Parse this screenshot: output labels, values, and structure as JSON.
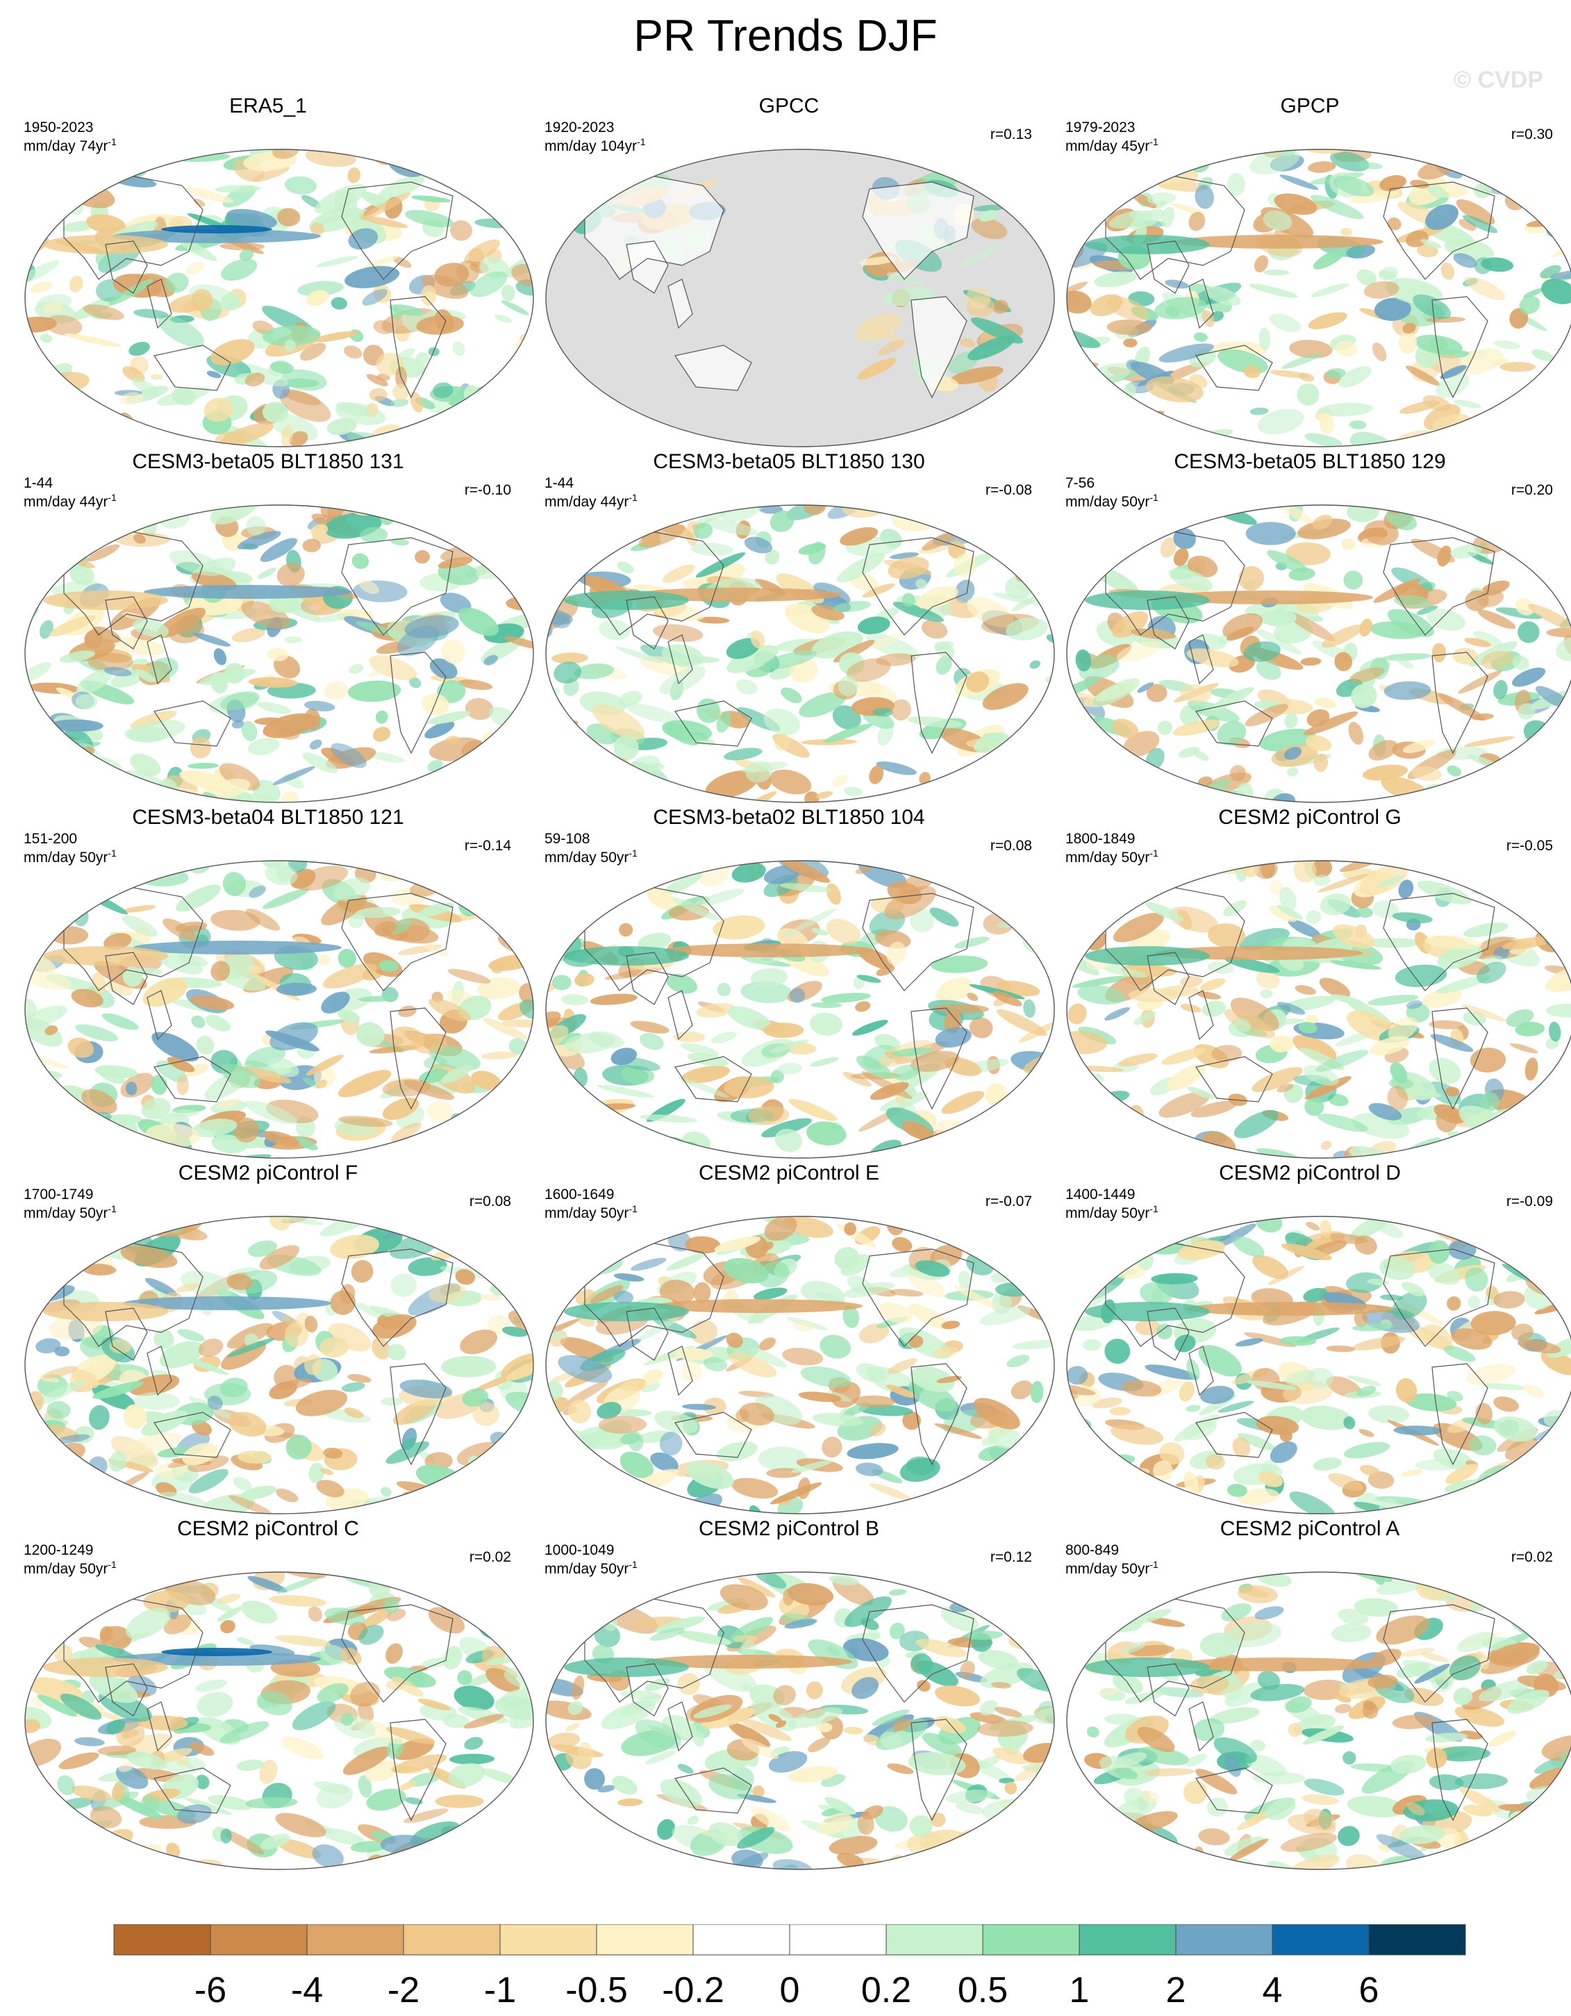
{
  "figure": {
    "title": "PR Trends DJF",
    "watermark": "© CVDP"
  },
  "panels": [
    {
      "title": "ERA5_1",
      "period": "1950-2023",
      "units": "mm/day 74yr",
      "units_sup": "-1",
      "r": "",
      "land_masked": false,
      "pattern": "era5"
    },
    {
      "title": "GPCC",
      "period": "1920-2023",
      "units": "mm/day 104yr",
      "units_sup": "-1",
      "r": "r=0.13",
      "land_masked": true,
      "pattern": "gpcc"
    },
    {
      "title": "GPCP",
      "period": "1979-2023",
      "units": "mm/day 45yr",
      "units_sup": "-1",
      "r": "r=0.30",
      "land_masked": false,
      "pattern": "gpcp"
    },
    {
      "title": "CESM3-beta05 BLT1850 131",
      "period": "1-44",
      "units": "mm/day 44yr",
      "units_sup": "-1",
      "r": "r=-0.10",
      "land_masked": false,
      "pattern": "model"
    },
    {
      "title": "CESM3-beta05 BLT1850 130",
      "period": "1-44",
      "units": "mm/day 44yr",
      "units_sup": "-1",
      "r": "r=-0.08",
      "land_masked": false,
      "pattern": "model"
    },
    {
      "title": "CESM3-beta05 BLT1850 129",
      "period": "7-56",
      "units": "mm/day 50yr",
      "units_sup": "-1",
      "r": "r=0.20",
      "land_masked": false,
      "pattern": "model"
    },
    {
      "title": "CESM3-beta04 BLT1850 121",
      "period": "151-200",
      "units": "mm/day 50yr",
      "units_sup": "-1",
      "r": "r=-0.14",
      "land_masked": false,
      "pattern": "model"
    },
    {
      "title": "CESM3-beta02 BLT1850 104",
      "period": "59-108",
      "units": "mm/day 50yr",
      "units_sup": "-1",
      "r": "r=0.08",
      "land_masked": false,
      "pattern": "model"
    },
    {
      "title": "CESM2 piControl G",
      "period": "1800-1849",
      "units": "mm/day 50yr",
      "units_sup": "-1",
      "r": "r=-0.05",
      "land_masked": false,
      "pattern": "model"
    },
    {
      "title": "CESM2 piControl F",
      "period": "1700-1749",
      "units": "mm/day 50yr",
      "units_sup": "-1",
      "r": "r=0.08",
      "land_masked": false,
      "pattern": "model"
    },
    {
      "title": "CESM2 piControl E",
      "period": "1600-1649",
      "units": "mm/day 50yr",
      "units_sup": "-1",
      "r": "r=-0.07",
      "land_masked": false,
      "pattern": "model"
    },
    {
      "title": "CESM2 piControl D",
      "period": "1400-1449",
      "units": "mm/day 50yr",
      "units_sup": "-1",
      "r": "r=-0.09",
      "land_masked": false,
      "pattern": "model"
    },
    {
      "title": "CESM2 piControl C",
      "period": "1200-1249",
      "units": "mm/day 50yr",
      "units_sup": "-1",
      "r": "r=0.02",
      "land_masked": false,
      "pattern": "model"
    },
    {
      "title": "CESM2 piControl B",
      "period": "1000-1049",
      "units": "mm/day 50yr",
      "units_sup": "-1",
      "r": "r=0.12",
      "land_masked": false,
      "pattern": "model"
    },
    {
      "title": "CESM2 piControl A",
      "period": "800-849",
      "units": "mm/day 50yr",
      "units_sup": "-1",
      "r": "r=0.02",
      "land_masked": false,
      "pattern": "model"
    }
  ],
  "colorbar": {
    "colors": [
      "#b5692a",
      "#cb8a4a",
      "#dda468",
      "#f0c98a",
      "#f7dfa6",
      "#fdf2c6",
      "#ffffff",
      "#ffffff",
      "#c8f2cd",
      "#93e2b0",
      "#52bf9e",
      "#6fa5c4",
      "#0a67ab",
      "#033a5c"
    ],
    "labels": [
      "-6",
      "-4",
      "-2",
      "-1",
      "-0.5",
      "-0.2",
      "0",
      "0.2",
      "0.5",
      "1",
      "2",
      "4",
      "6"
    ]
  }
}
